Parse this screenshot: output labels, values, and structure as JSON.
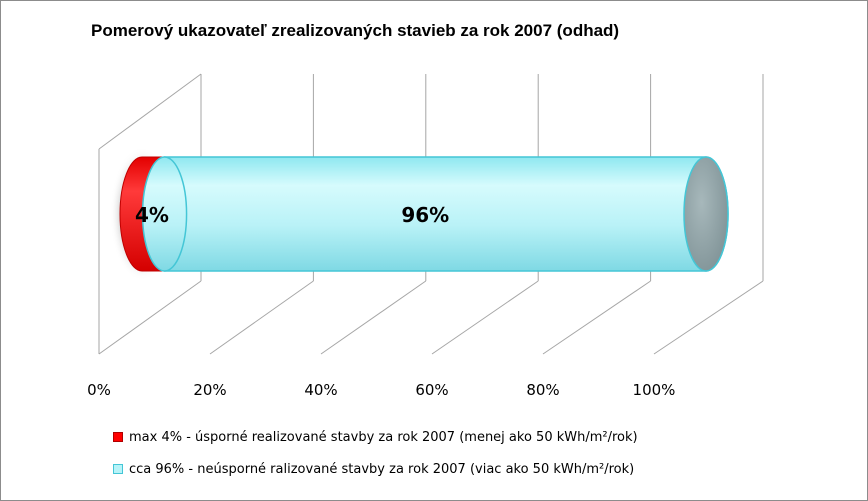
{
  "colors": {
    "red": "#ff0000",
    "cyan": "#b7f3f8",
    "cyan_edge": "#44c6d6",
    "end_cap": "#8fa3a7",
    "grid": "#a6a6a6"
  },
  "chart_data": {
    "type": "bar",
    "orientation": "horizontal",
    "stacked": "100%",
    "style": "3d-cylinder",
    "title": "Pomerový ukazovateľ zrealizovaných stavieb za rok 2007 (odhad)",
    "categories": [
      ""
    ],
    "series": [
      {
        "name": "max 4% - úsporné realizované stavby za rok 2007 (menej ako 50 kWh/m²/rok)",
        "values": [
          4
        ],
        "label": "4%",
        "color": "#ff0000"
      },
      {
        "name": "cca 96% - neúsporné ralizované stavby za rok 2007 (viac ako 50 kWh/m²/rok)",
        "values": [
          96
        ],
        "label": "96%",
        "color": "#b7f3f8"
      }
    ],
    "xlim": [
      0,
      100
    ],
    "xticks": [
      "0%",
      "20%",
      "40%",
      "60%",
      "80%",
      "100%"
    ],
    "grid": true,
    "legend_position": "bottom"
  }
}
